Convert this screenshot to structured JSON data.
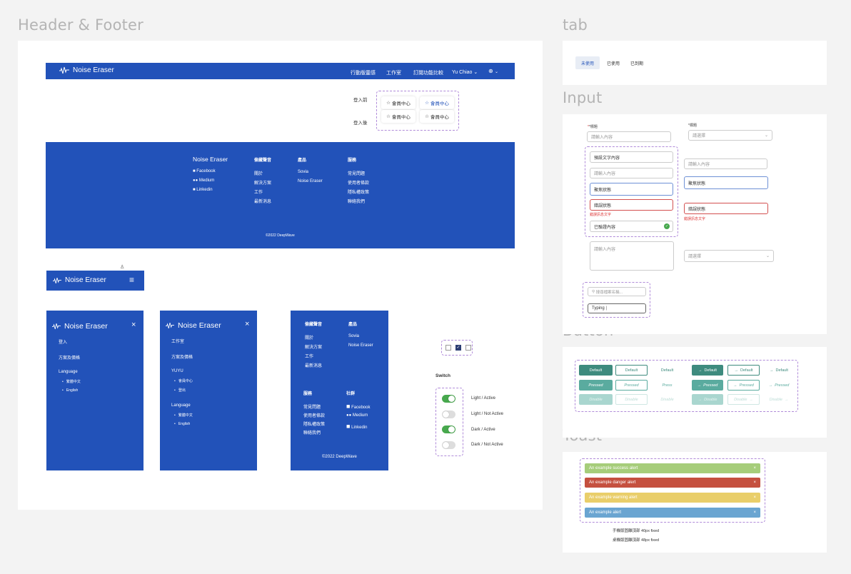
{
  "sections": {
    "header_footer": "Header & Footer",
    "tab": "tab",
    "input": "Input",
    "button": "Button",
    "toast": "Toast"
  },
  "header": {
    "logo": "Noise Eraser",
    "nav": [
      "行動版靈感",
      "工作室",
      "訂閱功能比較",
      "Yu Chiao"
    ],
    "globe_icon": "globe-icon",
    "chevron_icon": "chevron-down-icon"
  },
  "login": {
    "before": "登入前",
    "after": "登入後",
    "member": "會員中心",
    "star_icon": "star-icon"
  },
  "footer": {
    "brand": "Noise Eraser",
    "social": [
      "Facebook",
      "Medium",
      "Linkedin"
    ],
    "col_about": "偷藏聲音",
    "about_links": [
      "關於",
      "解決方案",
      "工作",
      "最新消息"
    ],
    "col_products": "產品",
    "product_links": [
      "Sovia",
      "Noise Eraser"
    ],
    "col_service": "服務",
    "service_links": [
      "常見問題",
      "使用者條款",
      "隱私權政策",
      "聯絡我們"
    ],
    "col_social": "社群",
    "copyright": "©2022 DeepWave"
  },
  "mobile": {
    "logo": "Noise Eraser",
    "menu1": {
      "items": [
        "登入",
        "方案及價格"
      ],
      "lang_label": "Language",
      "langs": [
        "繁體中文",
        "English"
      ]
    },
    "menu2": {
      "items": [
        "工作室",
        "方案及價格",
        "YUYU"
      ],
      "user_subs": [
        "會員中心",
        "登出"
      ],
      "lang_label": "Language",
      "langs": [
        "繁體中文",
        "English"
      ]
    }
  },
  "switch": {
    "title": "Switch",
    "labels": [
      "Light / Active",
      "Light / Not Active",
      "Dark / Active",
      "Dark / Not Active"
    ],
    "states": [
      true,
      false,
      true,
      false
    ]
  },
  "tabs": [
    "未使用",
    "已使用",
    "已到期"
  ],
  "inputs": {
    "required_label": "*標題",
    "placeholder": "請輸入內容",
    "select_placeholder": "請選擇",
    "preset": "預設文字內容",
    "focus": "聚焦狀態",
    "error": "錯誤狀態",
    "error_msg": "錯誤訊息文字",
    "verified": "已驗證內容",
    "search_placeholder": "搜尋檔案名稱...",
    "typing": "Typing"
  },
  "buttons": {
    "default": "Default",
    "pressed": "Pressed",
    "press": "Press",
    "disabled": "Disable",
    "colors": {
      "primary": "#3e8b7e",
      "pressed": "#5aab9f",
      "disabled": "#a9d6cf"
    }
  },
  "toasts": [
    {
      "text": "An example success alert",
      "color": "#a6cd7a"
    },
    {
      "text": "An example danger alert",
      "color": "#c5503f"
    },
    {
      "text": "An example warning alert",
      "color": "#e9ce6a"
    },
    {
      "text": "An example alert",
      "color": "#6aa5d1"
    }
  ],
  "toast_notes": [
    "手機版固離頂部 40px fixed",
    "桌機版固離頂部 48px fixed"
  ]
}
